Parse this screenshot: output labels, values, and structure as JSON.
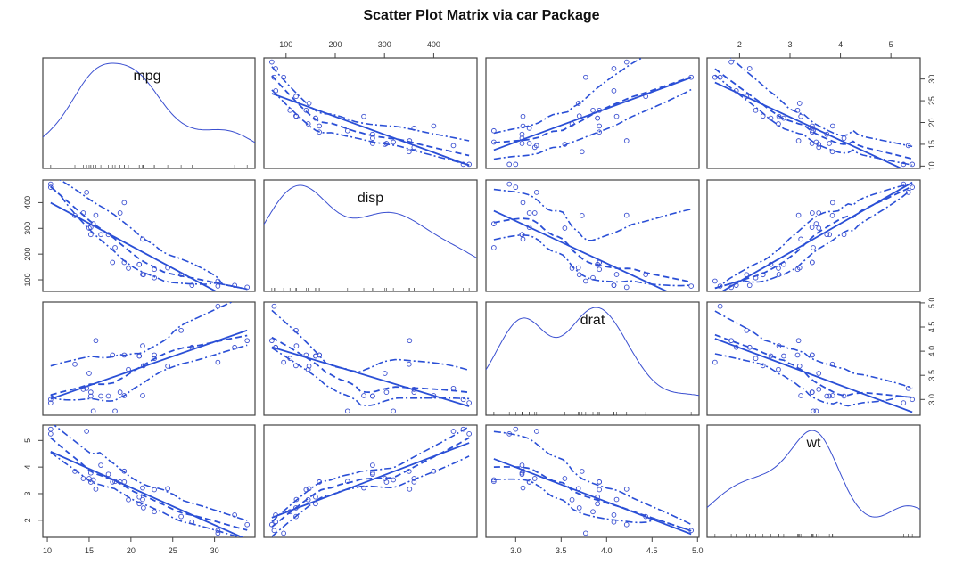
{
  "title": "Scatter Plot Matrix via car Package",
  "chart_data": {
    "type": "scatter",
    "title": "Scatter Plot Matrix via car Package",
    "variables": [
      "mpg",
      "disp",
      "drat",
      "wt"
    ],
    "series_color": "#2a4fd6",
    "axes": {
      "mpg": {
        "range": [
          10.4,
          33.9
        ],
        "ticks": [
          10,
          15,
          20,
          25,
          30
        ],
        "tick_labels": [
          "10",
          "15",
          "20",
          "25",
          "30"
        ]
      },
      "disp": {
        "range": [
          71.1,
          472
        ],
        "ticks": [
          100,
          200,
          300,
          400
        ],
        "tick_labels": [
          "100",
          "200",
          "300",
          "400"
        ]
      },
      "drat": {
        "range": [
          2.76,
          4.93
        ],
        "ticks": [
          3.0,
          3.5,
          4.0,
          4.5,
          5.0
        ],
        "tick_labels": [
          "3.0",
          "3.5",
          "4.0",
          "4.5",
          "5.0"
        ]
      },
      "wt": {
        "range": [
          1.513,
          5.424
        ],
        "ticks": [
          2,
          3,
          4,
          5
        ],
        "tick_labels": [
          "2",
          "3",
          "4",
          "5"
        ]
      }
    },
    "observations": {
      "mpg": [
        21,
        21,
        22.8,
        21.4,
        18.7,
        18.1,
        14.3,
        24.4,
        22.8,
        19.2,
        17.8,
        16.4,
        17.3,
        15.2,
        10.4,
        10.4,
        14.7,
        32.4,
        30.4,
        33.9,
        21.5,
        15.5,
        15.2,
        13.3,
        19.2,
        27.3,
        26,
        30.4,
        15.8,
        19.7,
        15,
        21.4
      ],
      "disp": [
        160,
        160,
        108,
        258,
        360,
        225,
        360,
        146.7,
        140.8,
        167.6,
        167.6,
        275.8,
        275.8,
        275.8,
        472,
        460,
        440,
        78.7,
        75.7,
        71.1,
        120.1,
        318,
        304,
        350,
        400,
        79,
        120.3,
        95.1,
        351,
        145,
        301,
        121
      ],
      "drat": [
        3.9,
        3.9,
        3.85,
        3.08,
        3.15,
        2.76,
        3.21,
        3.69,
        3.92,
        3.92,
        3.92,
        3.07,
        3.07,
        3.07,
        2.93,
        3,
        3.23,
        4.08,
        4.93,
        4.22,
        3.7,
        2.76,
        3.15,
        3.73,
        3.08,
        4.08,
        4.43,
        3.77,
        4.22,
        3.62,
        3.54,
        4.11
      ],
      "wt": [
        2.62,
        2.875,
        2.32,
        3.215,
        3.44,
        3.46,
        3.57,
        3.19,
        3.15,
        3.44,
        3.44,
        4.07,
        3.73,
        3.78,
        5.25,
        5.424,
        5.345,
        2.2,
        1.615,
        1.835,
        2.465,
        3.52,
        3.435,
        3.84,
        3.845,
        1.935,
        2.14,
        1.513,
        3.17,
        2.77,
        3.57,
        2.78
      ]
    },
    "diagonal": "density",
    "off_diagonal": "scatter with linear fit, loess smooth and spread",
    "grid": false,
    "legend": "none"
  }
}
